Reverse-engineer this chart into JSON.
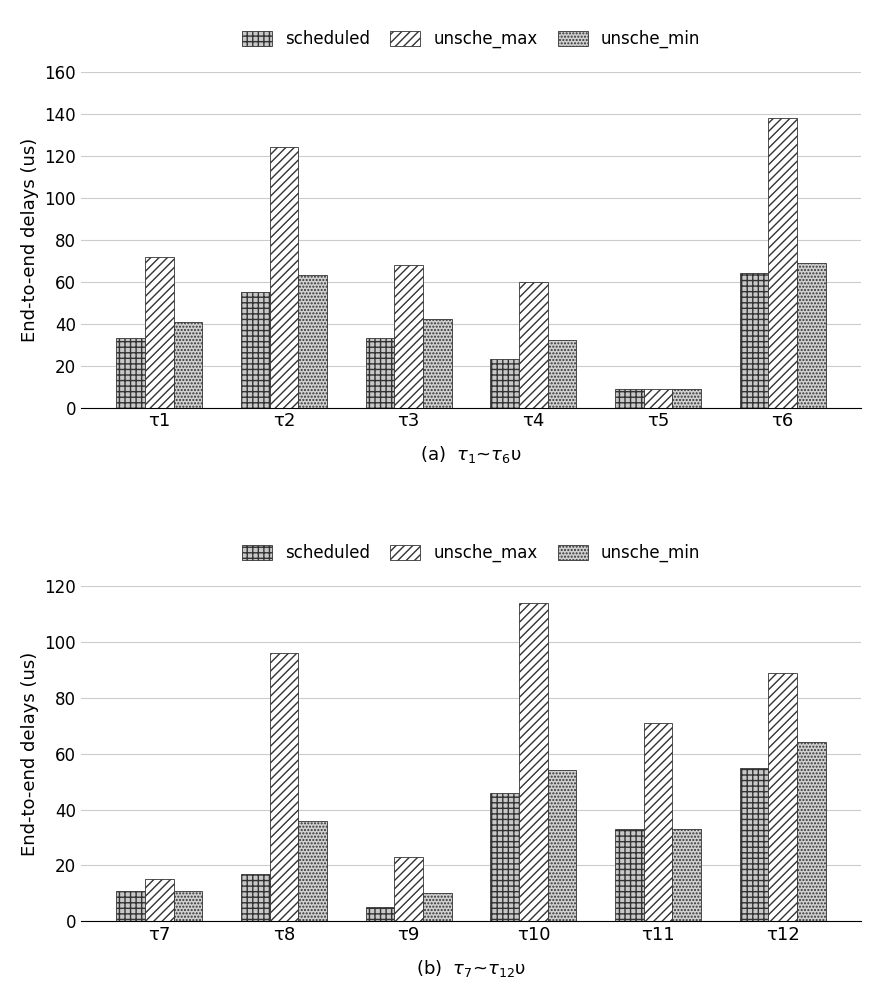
{
  "chart_a": {
    "categories": [
      "τ1",
      "τ2",
      "τ3",
      "τ4",
      "τ5",
      "τ6"
    ],
    "scheduled": [
      33,
      55,
      33,
      23,
      9,
      64
    ],
    "unsche_max": [
      72,
      124,
      68,
      60,
      9,
      138
    ],
    "unsche_min": [
      41,
      63,
      42,
      32,
      9,
      69
    ],
    "ylabel": "End-to-end delays (us)",
    "ylim": [
      0,
      160
    ],
    "yticks": [
      0,
      20,
      40,
      60,
      80,
      100,
      120,
      140,
      160
    ],
    "caption": "(a)  $\\tau_1$~$\\tau_6$υ"
  },
  "chart_b": {
    "categories": [
      "τ7",
      "τ8",
      "τ9",
      "τ10",
      "τ11",
      "τ12"
    ],
    "scheduled": [
      11,
      17,
      5,
      46,
      33,
      55
    ],
    "unsche_max": [
      15,
      96,
      23,
      114,
      71,
      89
    ],
    "unsche_min": [
      11,
      36,
      10,
      54,
      33,
      64
    ],
    "ylabel": "End-to-end delays (us)",
    "ylim": [
      0,
      120
    ],
    "yticks": [
      0,
      20,
      40,
      60,
      80,
      100,
      120
    ],
    "caption": "(b)  $\\tau_7$~$\\tau_{12}$υ"
  },
  "legend_labels": [
    "scheduled",
    "unsche_max",
    "unsche_min"
  ],
  "bar_color_scheduled": "#c8c8c8",
  "bar_color_unsche_max": "#ffffff",
  "bar_color_unsche_min": "#d0d0d0",
  "hatch_scheduled": "+++",
  "hatch_unsche_max": "////",
  "hatch_unsche_min": ".....",
  "bar_width": 0.23,
  "figsize": [
    8.82,
    10.0
  ],
  "dpi": 100
}
